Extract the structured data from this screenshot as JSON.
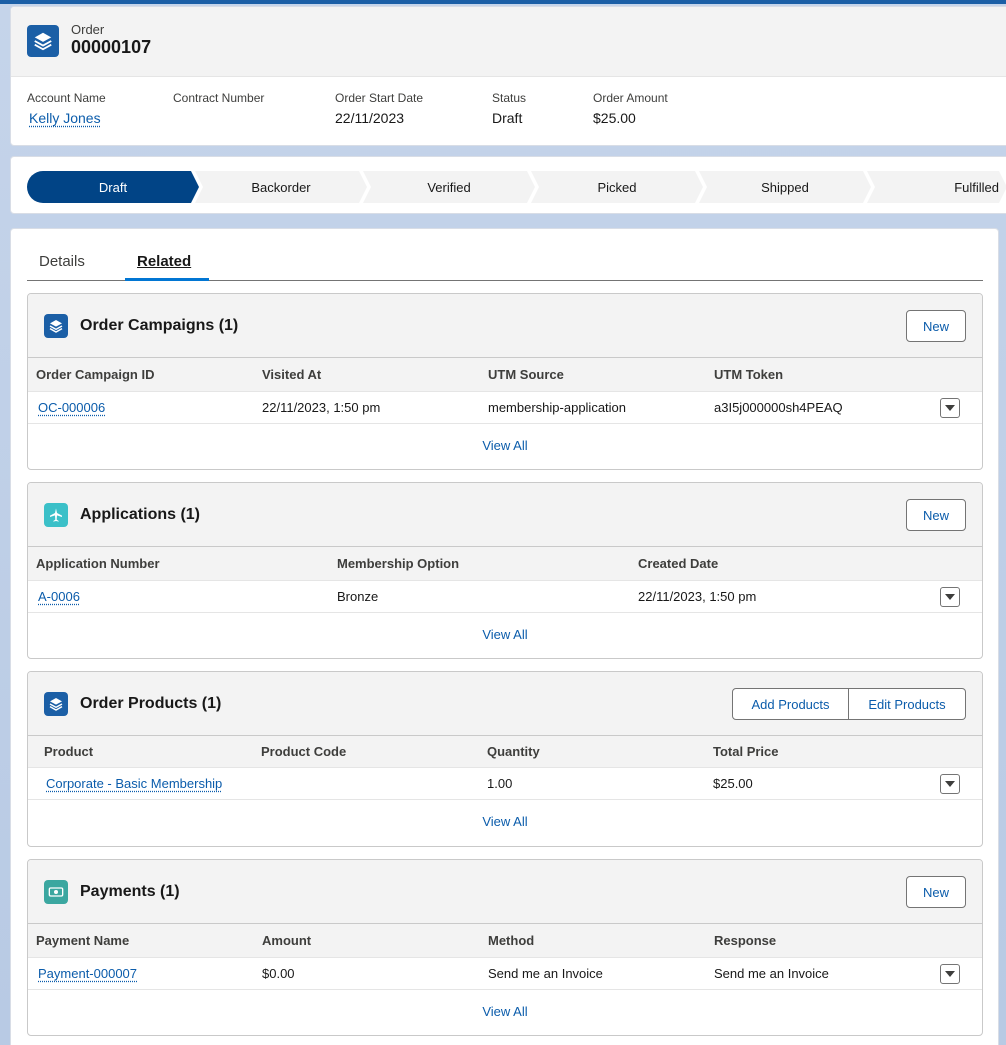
{
  "header": {
    "object_label": "Order",
    "record_title": "00000107",
    "fields": [
      {
        "label": "Account Name",
        "value": "Kelly Jones"
      },
      {
        "label": "Contract Number",
        "value": ""
      },
      {
        "label": "Order Start Date",
        "value": "22/11/2023"
      },
      {
        "label": "Status",
        "value": "Draft"
      },
      {
        "label": "Order Amount",
        "value": "$25.00"
      }
    ]
  },
  "path": {
    "steps": [
      "Draft",
      "Backorder",
      "Verified",
      "Picked",
      "Shipped",
      "Fulfilled"
    ],
    "active_index": 0
  },
  "tabs": [
    {
      "label": "Details",
      "active": false
    },
    {
      "label": "Related",
      "active": true
    }
  ],
  "related": {
    "campaigns": {
      "title": "Order Campaigns (1)",
      "button": "New",
      "columns": [
        "Order Campaign ID",
        "Visited At",
        "UTM Source",
        "UTM Token"
      ],
      "rows": [
        [
          "OC-000006",
          "22/11/2023, 1:50 pm",
          "membership-application",
          "a3I5j000000sh4PEAQ"
        ]
      ],
      "view_all": "View All"
    },
    "applications": {
      "title": "Applications (1)",
      "button": "New",
      "columns": [
        "Application Number",
        "Membership Option",
        "Created Date"
      ],
      "rows": [
        [
          "A-0006",
          "Bronze",
          "22/11/2023, 1:50 pm"
        ]
      ],
      "view_all": "View All"
    },
    "products": {
      "title": "Order Products (1)",
      "button_add": "Add Products",
      "button_edit": "Edit Products",
      "columns": [
        "Product",
        "Product Code",
        "Quantity",
        "Total Price"
      ],
      "rows": [
        [
          "Corporate - Basic Membership",
          "",
          "1.00",
          "$25.00"
        ]
      ],
      "view_all": "View All"
    },
    "payments": {
      "title": "Payments (1)",
      "button": "New",
      "columns": [
        "Payment Name",
        "Amount",
        "Method",
        "Response"
      ],
      "rows": [
        [
          "Payment-000007",
          "$0.00",
          "Send me an Invoice",
          "Send me an Invoice"
        ]
      ],
      "view_all": "View All"
    }
  },
  "colors": {
    "brand": "#014486",
    "link": "#0b5cab",
    "order_icon": "#1b5fa6",
    "application_icon": "#3bc0c8",
    "payment_icon": "#3ba7a0"
  },
  "icons": {
    "order": "stack-icon",
    "application": "plane-icon",
    "payment": "money-icon"
  }
}
